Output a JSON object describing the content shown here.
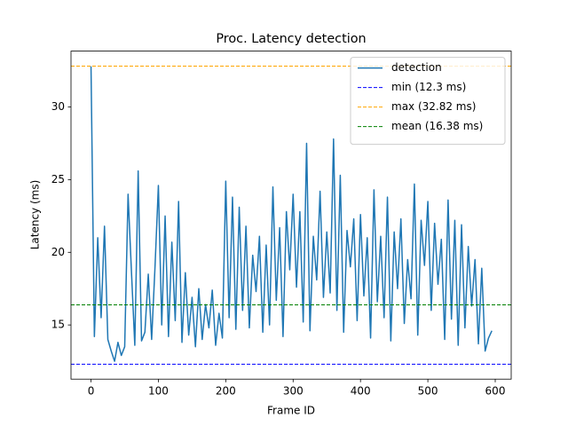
{
  "chart_data": {
    "type": "line",
    "title": "Proc. Latency detection",
    "x_label": "Frame ID",
    "y_label": "Latency (ms)",
    "x": [
      0,
      5,
      10,
      15,
      20,
      25,
      30,
      35,
      40,
      45,
      50,
      55,
      60,
      65,
      70,
      75,
      80,
      85,
      90,
      95,
      100,
      105,
      110,
      115,
      120,
      125,
      130,
      135,
      140,
      145,
      150,
      155,
      160,
      165,
      170,
      175,
      180,
      185,
      190,
      195,
      200,
      205,
      210,
      215,
      220,
      225,
      230,
      235,
      240,
      245,
      250,
      255,
      260,
      265,
      270,
      275,
      280,
      285,
      290,
      295,
      300,
      305,
      310,
      315,
      320,
      325,
      330,
      335,
      340,
      345,
      350,
      355,
      360,
      365,
      370,
      375,
      380,
      385,
      390,
      395,
      400,
      405,
      410,
      415,
      420,
      425,
      430,
      435,
      440,
      445,
      450,
      455,
      460,
      465,
      470,
      475,
      480,
      485,
      490,
      495,
      500,
      505,
      510,
      515,
      520,
      525,
      530,
      535,
      540,
      545,
      550,
      555,
      560,
      565,
      570,
      575,
      580,
      585,
      590,
      595
    ],
    "series": [
      {
        "name": "detection",
        "color": "#1f77b4",
        "values": [
          32.8,
          14.2,
          21.0,
          15.5,
          21.8,
          14.0,
          13.2,
          12.5,
          13.8,
          12.9,
          13.5,
          24.0,
          18.7,
          13.6,
          25.6,
          13.9,
          14.5,
          18.5,
          14.0,
          19.0,
          24.6,
          15.0,
          22.5,
          14.2,
          20.7,
          15.3,
          23.5,
          13.8,
          18.6,
          14.3,
          16.9,
          13.5,
          17.5,
          14.0,
          16.4,
          14.8,
          17.4,
          13.6,
          15.8,
          14.1,
          24.9,
          15.5,
          23.8,
          14.7,
          23.1,
          16.0,
          21.8,
          14.8,
          19.8,
          17.3,
          21.1,
          14.5,
          20.5,
          15.0,
          24.5,
          16.7,
          21.7,
          14.2,
          22.8,
          18.8,
          24.0,
          17.6,
          22.8,
          15.2,
          27.5,
          14.6,
          21.1,
          18.1,
          24.2,
          16.9,
          21.4,
          17.2,
          27.8,
          16.0,
          25.3,
          14.5,
          21.5,
          19.0,
          22.3,
          15.3,
          22.6,
          17.0,
          21.0,
          14.1,
          24.3,
          16.6,
          21.1,
          15.5,
          23.8,
          13.9,
          21.4,
          17.5,
          22.3,
          15.1,
          19.5,
          16.8,
          24.7,
          14.3,
          22.2,
          19.1,
          23.5,
          16.0,
          22.0,
          17.8,
          20.9,
          14.0,
          23.6,
          15.4,
          22.2,
          13.6,
          21.9,
          14.8,
          20.4,
          16.3,
          19.5,
          13.7,
          18.9,
          13.2,
          14.1,
          14.6
        ]
      }
    ],
    "hlines": [
      {
        "name": "min (12.3 ms)",
        "value": 12.3,
        "color": "#0000ff"
      },
      {
        "name": "max (32.82 ms)",
        "value": 32.82,
        "color": "#ffa500"
      },
      {
        "name": "mean (16.38 ms)",
        "value": 16.38,
        "color": "#008000"
      }
    ],
    "xlim": [
      -29.7,
      623.7
    ],
    "ylim": [
      11.27,
      33.85
    ],
    "xticks": [
      0,
      100,
      200,
      300,
      400,
      500,
      600
    ],
    "yticks": [
      15,
      20,
      25,
      30
    ],
    "legend": "upper right"
  }
}
